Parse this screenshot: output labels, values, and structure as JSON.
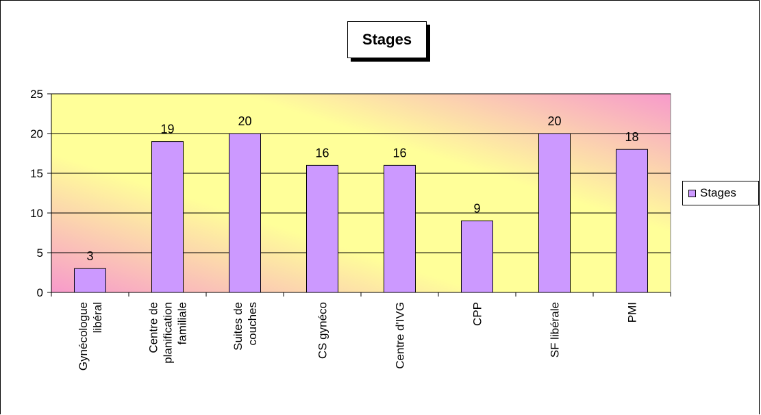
{
  "chart_data": {
    "type": "bar",
    "title": "Stages",
    "categories": [
      [
        "Gynécologue",
        "libéral"
      ],
      [
        "Centre de",
        "planification",
        "familiale"
      ],
      [
        "Suites de",
        "couches"
      ],
      [
        "CS gynéco"
      ],
      [
        "Centre d'IVG"
      ],
      [
        "CPP"
      ],
      [
        "SF libérale"
      ],
      [
        "PMI"
      ]
    ],
    "series": [
      {
        "name": "Stages",
        "values": [
          3,
          19,
          20,
          16,
          16,
          9,
          20,
          18
        ],
        "color": "#CC99FF"
      }
    ],
    "y_ticks": [
      "0",
      "5",
      "10",
      "15",
      "20",
      "25"
    ],
    "ylim": [
      0,
      25
    ],
    "grid": true,
    "legend": "right",
    "plot_gradient": [
      "#F79ACB",
      "#FFFF99"
    ]
  }
}
